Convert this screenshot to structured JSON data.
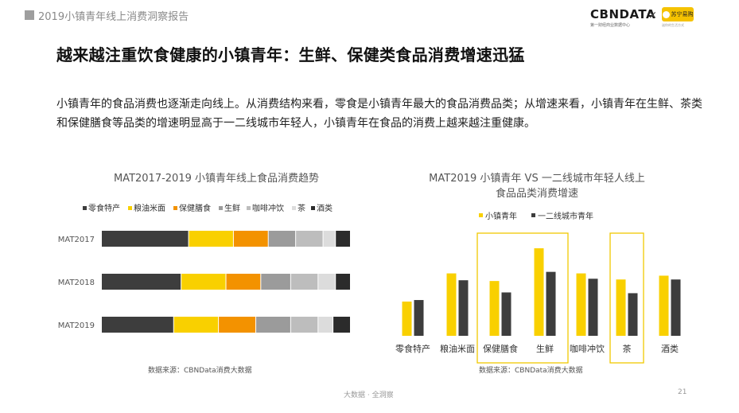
{
  "header": {
    "title": "2019小镇青年线上消费洞察报告",
    "logo_cbn": "CBNDATA",
    "logo_cbn_sub": "第一财经商业数据中心",
    "logo_x": "×",
    "logo_suning": "苏宁易购",
    "logo_suning_sub": "迷你的生活方式"
  },
  "main_title": "越来越注重饮食健康的小镇青年：生鲜、保健类食品消费增速迅猛",
  "description": "小镇青年的食品消费也逐渐走向线上。从消费结构来看，零食是小镇青年最大的食品消费品类；从增速来看，小镇青年在生鲜、茶类和保健膳食等品类的增速明显高于一二线城市年轻人，小镇青年在食品的消费上越来越注重健康。",
  "colors": {
    "零食特产": "#3d3d3d",
    "粮油米面": "#f9d000",
    "保健膳食": "#f39200",
    "生鲜": "#9b9b9b",
    "咖啡冲饮": "#bdbdbd",
    "茶": "#dcdcdc",
    "酒类": "#2b2b2b",
    "小镇青年": "#f9d000",
    "一二线城市青年": "#3d3d3d",
    "highlight": "#f0c800"
  },
  "chart_data": [
    {
      "type": "bar",
      "orientation": "horizontal",
      "stacked": true,
      "percent_stacked": true,
      "title": "MAT2017-2019 小镇青年线上食品消费趋势",
      "categories": [
        "MAT2017",
        "MAT2018",
        "MAT2019"
      ],
      "series": [
        {
          "name": "零食特产",
          "values": [
            35,
            32,
            29
          ]
        },
        {
          "name": "粮油米面",
          "values": [
            18,
            18,
            18
          ]
        },
        {
          "name": "保健膳食",
          "values": [
            14,
            14,
            15
          ]
        },
        {
          "name": "生鲜",
          "values": [
            11,
            12,
            14
          ]
        },
        {
          "name": "咖啡冲饮",
          "values": [
            11,
            11,
            11
          ]
        },
        {
          "name": "茶",
          "values": [
            5,
            7,
            6
          ]
        },
        {
          "name": "酒类",
          "values": [
            6,
            6,
            7
          ]
        }
      ],
      "legend_position": "top",
      "grid": false,
      "source": "数据来源：CBNData消费大数据"
    },
    {
      "type": "bar",
      "orientation": "vertical",
      "title": "MAT2019 小镇青年 VS 一二线城市年轻人线上食品品类消费增速",
      "title_lines": [
        "MAT2019 小镇青年 VS 一二线城市年轻人线上",
        "食品品类消费增速"
      ],
      "categories": [
        "零食特产",
        "粮油米面",
        "保健膳食",
        "生鲜",
        "咖啡冲饮",
        "茶",
        "酒类"
      ],
      "series": [
        {
          "name": "小镇青年",
          "values": [
            45,
            82,
            72,
            115,
            82,
            74,
            79
          ]
        },
        {
          "name": "一二线城市青年",
          "values": [
            47,
            73,
            57,
            84,
            75,
            56,
            74
          ]
        }
      ],
      "highlighted_categories": [
        "保健膳食",
        "生鲜",
        "茶"
      ],
      "legend_position": "top",
      "grid": false,
      "y_axis_visible": false,
      "source": "数据来源：CBNData消费大数据"
    }
  ],
  "footer": {
    "center": "大数据 · 全洞察",
    "page": "21"
  }
}
